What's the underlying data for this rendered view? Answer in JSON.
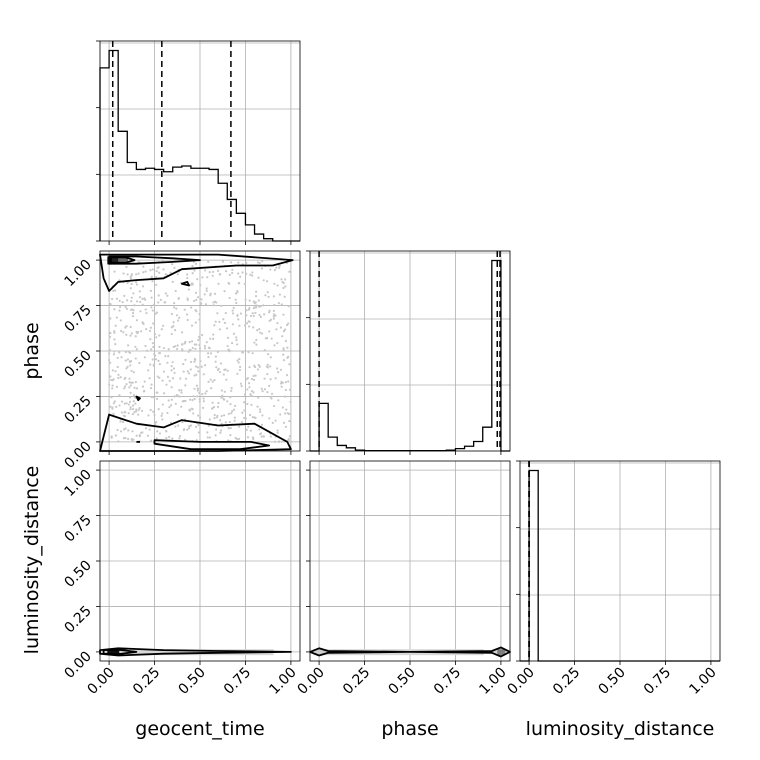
{
  "chart_data": {
    "type": "corner",
    "parameters": [
      "geocent_time",
      "phase",
      "luminosity_distance"
    ],
    "axis_ticks": [
      0.0,
      0.25,
      0.5,
      0.75,
      1.0
    ],
    "tick_labels": [
      "0.00",
      "0.25",
      "0.50",
      "0.75",
      "1.00"
    ],
    "xlim": [
      -0.05,
      1.05
    ],
    "grid": true,
    "histograms": [
      {
        "parameter": "geocent_time",
        "bin_edges": [
          -0.05,
          0.0,
          0.05,
          0.1,
          0.15,
          0.2,
          0.25,
          0.3,
          0.35,
          0.4,
          0.45,
          0.5,
          0.55,
          0.6,
          0.65,
          0.7,
          0.75,
          0.8,
          0.85,
          0.9,
          0.95,
          1.0,
          1.05
        ],
        "counts": [
          150,
          165,
          95,
          68,
          62,
          63,
          62,
          60,
          64,
          65,
          63,
          63,
          62,
          50,
          36,
          24,
          14,
          6,
          2,
          0,
          0,
          0
        ],
        "quantiles": [
          0.02,
          0.29,
          0.67
        ]
      },
      {
        "parameter": "phase",
        "bin_edges": [
          -0.05,
          0.0,
          0.05,
          0.1,
          0.15,
          0.2,
          0.25,
          0.3,
          0.35,
          0.4,
          0.45,
          0.5,
          0.55,
          0.6,
          0.65,
          0.7,
          0.75,
          0.8,
          0.85,
          0.9,
          0.95,
          1.0,
          1.05
        ],
        "counts": [
          0,
          120,
          35,
          14,
          8,
          2,
          1,
          1,
          1,
          1,
          1,
          1,
          1,
          1,
          1,
          2,
          6,
          12,
          24,
          60,
          480,
          0
        ],
        "quantiles": [
          0.0,
          0.98,
          0.995
        ]
      },
      {
        "parameter": "luminosity_distance",
        "bin_edges": [
          -0.05,
          0.0,
          0.05,
          0.1,
          0.15,
          0.2,
          0.25,
          0.3,
          0.35,
          0.4,
          0.45,
          0.5,
          0.55,
          0.6,
          0.65,
          0.7,
          0.75,
          0.8,
          0.85,
          0.9,
          0.95,
          1.0,
          1.05
        ],
        "counts": [
          0,
          2000,
          0,
          0,
          0,
          0,
          0,
          0,
          0,
          0,
          0,
          0,
          0,
          0,
          0,
          0,
          0,
          0,
          0,
          0,
          0,
          0
        ],
        "quantiles": [
          0.0,
          0.0,
          0.0
        ]
      }
    ],
    "joint_panels": [
      {
        "x": "geocent_time",
        "y": "phase",
        "scatter_density": "uniform grey points across x 0.0–1.0, y 0.0–1.0",
        "contours": [
          [
            [
              -0.05,
              1.03
            ],
            [
              0.3,
              1.03
            ],
            [
              0.6,
              1.03
            ],
            [
              1.01,
              1.0
            ],
            [
              0.9,
              0.97
            ],
            [
              0.7,
              0.97
            ],
            [
              0.4,
              0.95
            ],
            [
              0.3,
              0.9
            ],
            [
              0.15,
              0.89
            ],
            [
              0.05,
              0.88
            ],
            [
              0.0,
              0.83
            ],
            [
              -0.03,
              0.9
            ]
          ],
          [
            [
              0.0,
              1.02
            ],
            [
              0.15,
              1.02
            ],
            [
              0.35,
              1.01
            ],
            [
              0.5,
              1.0
            ],
            [
              0.35,
              0.99
            ],
            [
              0.15,
              0.98
            ],
            [
              0.0,
              0.98
            ]
          ],
          [
            [
              0.01,
              1.015
            ],
            [
              0.09,
              1.015
            ],
            [
              0.14,
              1.0
            ],
            [
              0.09,
              0.985
            ],
            [
              0.01,
              0.985
            ]
          ],
          [
            [
              0.4,
              0.87
            ],
            [
              0.43,
              0.88
            ],
            [
              0.44,
              0.86
            ]
          ],
          [
            [
              -0.05,
              -0.05
            ],
            [
              0.3,
              -0.05
            ],
            [
              0.6,
              -0.05
            ],
            [
              1.0,
              -0.04
            ],
            [
              0.98,
              0.0
            ],
            [
              0.8,
              0.1
            ],
            [
              0.6,
              0.09
            ],
            [
              0.4,
              0.12
            ],
            [
              0.3,
              0.08
            ],
            [
              0.15,
              0.1
            ],
            [
              0.0,
              0.15
            ],
            [
              -0.03,
              0.03
            ]
          ],
          [
            [
              0.25,
              0.01
            ],
            [
              0.5,
              0.0
            ],
            [
              0.78,
              0.0
            ],
            [
              0.88,
              -0.02
            ],
            [
              0.72,
              -0.04
            ],
            [
              0.45,
              -0.04
            ],
            [
              0.25,
              -0.01
            ]
          ],
          [
            [
              0.15,
              0.25
            ],
            [
              0.17,
              0.24
            ],
            [
              0.16,
              0.23
            ]
          ],
          [
            [
              0.15,
              0.0
            ],
            [
              0.17,
              0.0
            ]
          ]
        ]
      },
      {
        "x": "geocent_time",
        "y": "luminosity_distance",
        "scatter_density": "narrow band at y 0.0 across x 0.0–1.0",
        "contours": [
          [
            [
              -0.05,
              0.01
            ],
            [
              0.05,
              0.02
            ],
            [
              0.3,
              0.01
            ],
            [
              0.6,
              0.005
            ],
            [
              1.0,
              0.0
            ],
            [
              0.6,
              -0.005
            ],
            [
              0.3,
              -0.01
            ],
            [
              0.05,
              -0.02
            ],
            [
              -0.05,
              -0.01
            ]
          ],
          [
            [
              -0.03,
              0.01
            ],
            [
              0.05,
              0.012
            ],
            [
              0.15,
              0.0
            ],
            [
              0.05,
              -0.012
            ],
            [
              -0.03,
              -0.01
            ]
          ]
        ]
      },
      {
        "x": "phase",
        "y": "luminosity_distance",
        "scatter_density": "narrow band at y 0.0 across x 0.0–1.0",
        "contours": [
          [
            [
              -0.05,
              0.0
            ],
            [
              0.0,
              0.02
            ],
            [
              0.05,
              0.005
            ],
            [
              0.5,
              0.0
            ],
            [
              0.95,
              0.005
            ],
            [
              1.0,
              0.025
            ],
            [
              1.05,
              0.0
            ],
            [
              1.0,
              -0.025
            ],
            [
              0.95,
              -0.005
            ],
            [
              0.5,
              0.0
            ],
            [
              0.05,
              -0.005
            ],
            [
              0.0,
              -0.02
            ]
          ]
        ]
      }
    ]
  }
}
